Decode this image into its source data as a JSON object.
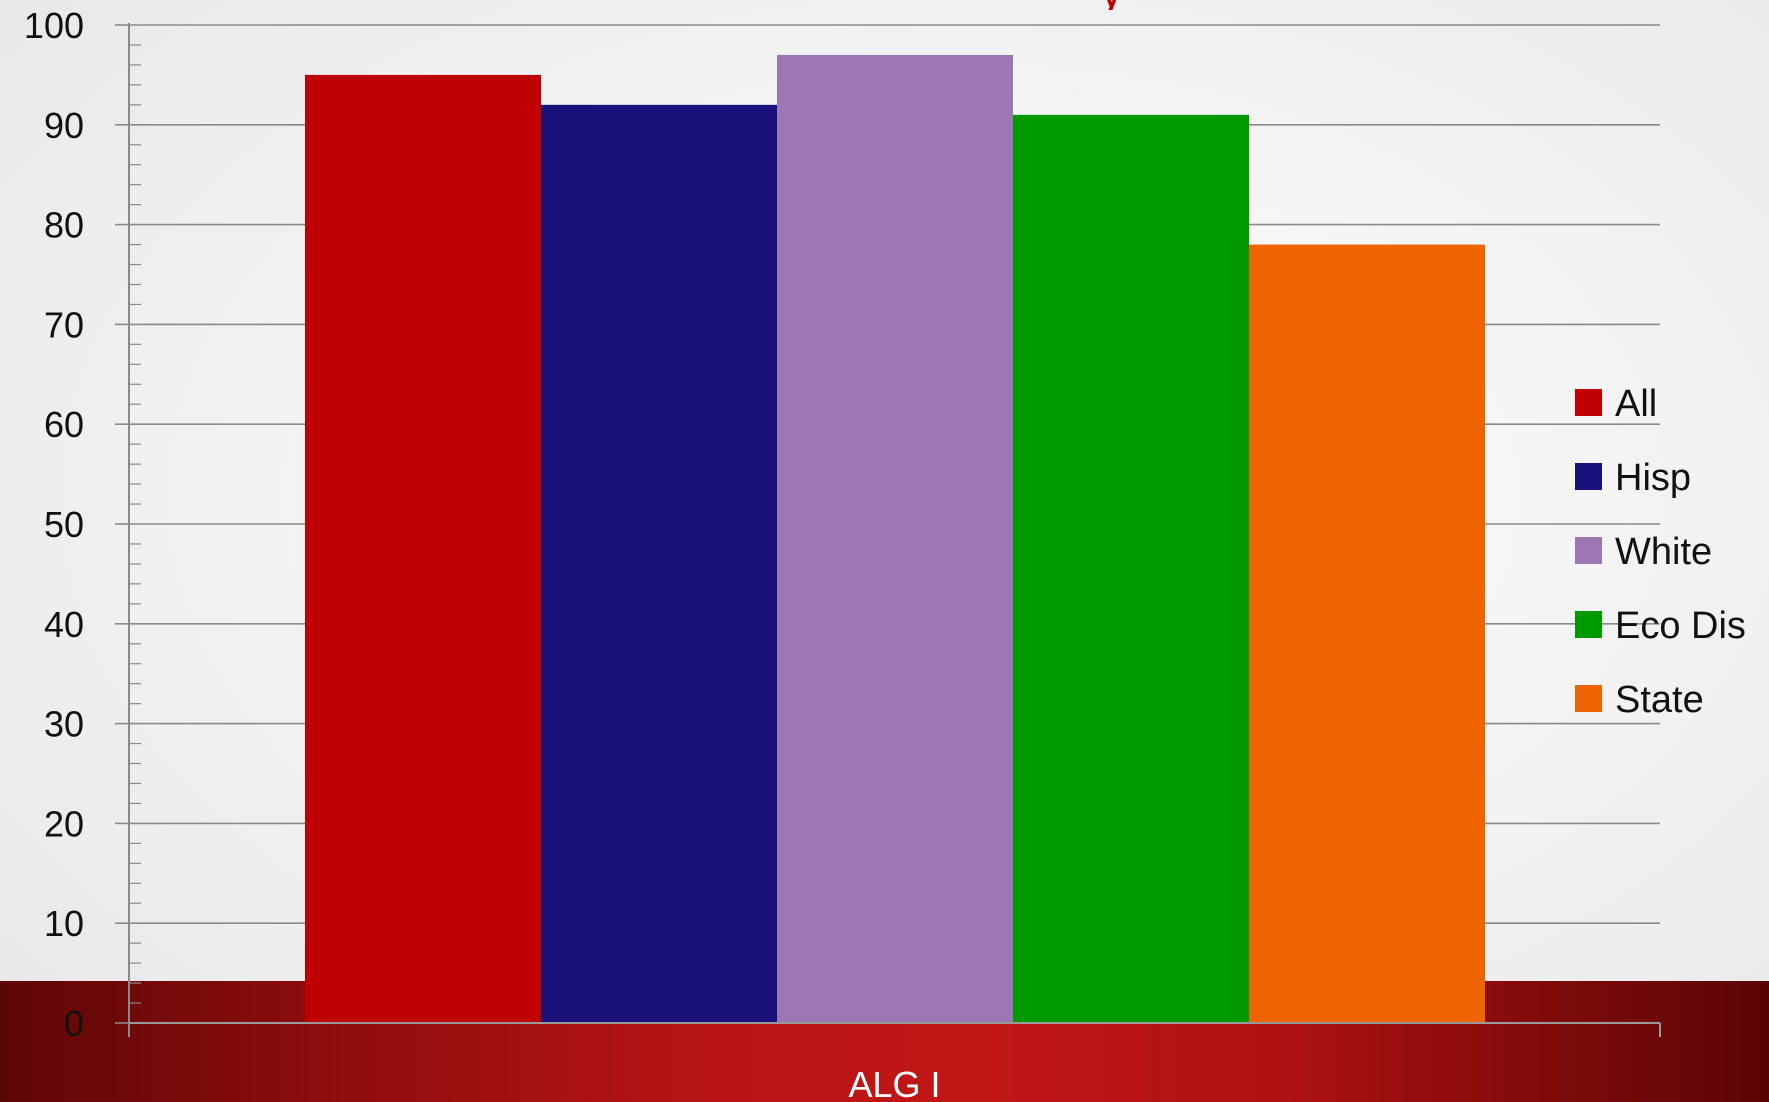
{
  "chart_data": {
    "type": "bar",
    "categories": [
      "ALG I"
    ],
    "series": [
      {
        "name": "All",
        "values": [
          95
        ],
        "color": "#c00000"
      },
      {
        "name": "Hisp",
        "values": [
          92
        ],
        "color": "#18127a"
      },
      {
        "name": "White",
        "values": [
          97
        ],
        "color": "#9b78b4"
      },
      {
        "name": "Eco Dis",
        "values": [
          91
        ],
        "color": "#009900"
      },
      {
        "name": "State",
        "values": [
          78
        ],
        "color": "#f06400"
      }
    ],
    "title_fragment": "y",
    "xlabel": "",
    "ylabel": "",
    "ylim": [
      0,
      100
    ],
    "yticks": [
      "0",
      "10",
      "20",
      "30",
      "40",
      "50",
      "60",
      "70",
      "80",
      "90",
      "100"
    ],
    "grid": true,
    "legend_position": "right"
  }
}
